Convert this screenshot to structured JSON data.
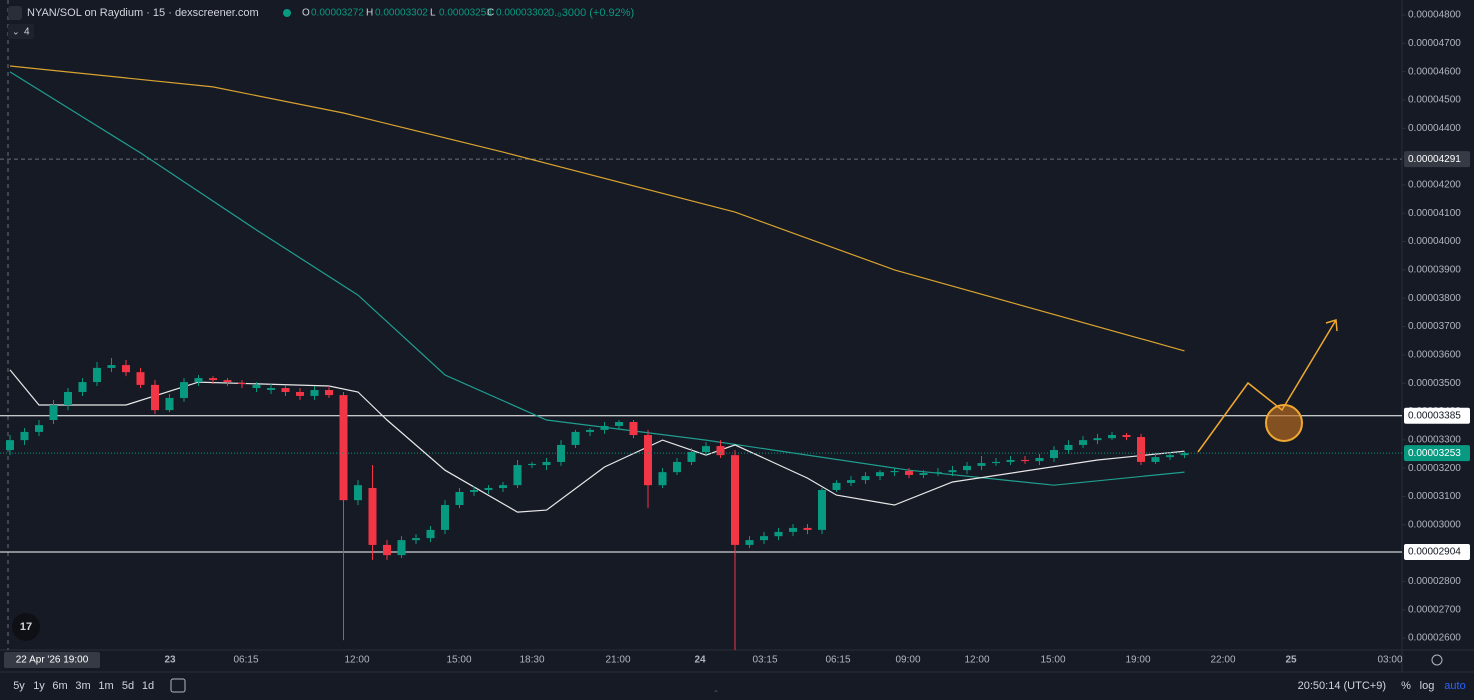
{
  "chart_data": {
    "type": "candlestick",
    "title": "NYAN/SOL on Raydium · 15 · dexscreener.com",
    "indicator_count": "4",
    "legend_ohlc": [
      {
        "label": "O",
        "value": "0.00003272"
      },
      {
        "label": "H",
        "value": "0.00003302"
      },
      {
        "label": "L",
        "value": "0.00003253"
      },
      {
        "label": "C",
        "value": "0.00003302"
      }
    ],
    "change": "0.₀3000 (+0.92%)",
    "up_color": "#089981",
    "down_color": "#f23645",
    "ylim": [
      2.558e-05,
      4.853e-05
    ],
    "yticks": [
      {
        "value": 4.8e-05,
        "label": "0.00004800"
      },
      {
        "value": 4.7e-05,
        "label": "0.00004700"
      },
      {
        "value": 4.6e-05,
        "label": "0.00004600"
      },
      {
        "value": 4.5e-05,
        "label": "0.00004500"
      },
      {
        "value": 4.4e-05,
        "label": "0.00004400"
      },
      {
        "value": 4.3e-05,
        "label": "0.00004300"
      },
      {
        "value": 4.2e-05,
        "label": "0.00004200"
      },
      {
        "value": 4.1e-05,
        "label": "0.00004100"
      },
      {
        "value": 4e-05,
        "label": "0.00004000"
      },
      {
        "value": 3.9e-05,
        "label": "0.00003900"
      },
      {
        "value": 3.8e-05,
        "label": "0.00003800"
      },
      {
        "value": 3.7e-05,
        "label": "0.00003700"
      },
      {
        "value": 3.6e-05,
        "label": "0.00003600"
      },
      {
        "value": 3.5e-05,
        "label": "0.00003500"
      },
      {
        "value": 3.4e-05,
        "label": "0.00003400"
      },
      {
        "value": 3.3e-05,
        "label": "0.00003300"
      },
      {
        "value": 3.2e-05,
        "label": "0.00003200"
      },
      {
        "value": 3.1e-05,
        "label": "0.00003100"
      },
      {
        "value": 3e-05,
        "label": "0.00003000"
      },
      {
        "value": 2.9e-05,
        "label": "0.00002900"
      },
      {
        "value": 2.8e-05,
        "label": "0.00002800"
      },
      {
        "value": 2.7e-05,
        "label": "0.00002700"
      },
      {
        "value": 2.6e-05,
        "label": "0.00002600"
      }
    ],
    "price_lines": [
      {
        "value": 4.291e-05,
        "label": "0.00004291",
        "style": "dashed",
        "color": "#6a6d78"
      },
      {
        "value": 3.385e-05,
        "label": "0.00003385",
        "style": "solid",
        "color": "#ffffff"
      },
      {
        "value": 2.904e-05,
        "label": "0.00002904",
        "style": "solid",
        "color": "#ffffff"
      }
    ],
    "last_price": {
      "value": 3.253e-05,
      "label": "0.00003253"
    },
    "time_labels": [
      "22 Apr '26  19:00",
      "23",
      "06:15",
      "12:00",
      "15:00",
      "18:30",
      "21:00",
      "24",
      "03:15",
      "06:15",
      "09:00",
      "12:00",
      "15:00",
      "19:00",
      "22:00",
      "25",
      "03:00"
    ],
    "candles": [
      {
        "o": 3.264e-05,
        "h": 3.317e-05,
        "l": 3.246e-05,
        "c": 3.299e-05
      },
      {
        "o": 3.299e-05,
        "h": 3.342e-05,
        "l": 3.282e-05,
        "c": 3.328e-05
      },
      {
        "o": 3.328e-05,
        "h": 3.37e-05,
        "l": 3.313e-05,
        "c": 3.352e-05
      },
      {
        "o": 3.37e-05,
        "h": 3.441e-05,
        "l": 3.356e-05,
        "c": 3.423e-05
      },
      {
        "o": 3.423e-05,
        "h": 3.483e-05,
        "l": 3.405e-05,
        "c": 3.469e-05
      },
      {
        "o": 3.469e-05,
        "h": 3.518e-05,
        "l": 3.455e-05,
        "c": 3.504e-05
      },
      {
        "o": 3.504e-05,
        "h": 3.575e-05,
        "l": 3.49e-05,
        "c": 3.554e-05
      },
      {
        "o": 3.554e-05,
        "h": 3.589e-05,
        "l": 3.539e-05,
        "c": 3.564e-05
      },
      {
        "o": 3.564e-05,
        "h": 3.582e-05,
        "l": 3.525e-05,
        "c": 3.539e-05
      },
      {
        "o": 3.539e-05,
        "h": 3.554e-05,
        "l": 3.483e-05,
        "c": 3.494e-05
      },
      {
        "o": 3.494e-05,
        "h": 3.511e-05,
        "l": 3.391e-05,
        "c": 3.405e-05
      },
      {
        "o": 3.405e-05,
        "h": 3.462e-05,
        "l": 3.398e-05,
        "c": 3.448e-05
      },
      {
        "o": 3.448e-05,
        "h": 3.518e-05,
        "l": 3.434e-05,
        "c": 3.504e-05
      },
      {
        "o": 3.504e-05,
        "h": 3.529e-05,
        "l": 3.49e-05,
        "c": 3.518e-05
      },
      {
        "o": 3.518e-05,
        "h": 3.525e-05,
        "l": 3.497e-05,
        "c": 3.511e-05
      },
      {
        "o": 3.511e-05,
        "h": 3.518e-05,
        "l": 3.49e-05,
        "c": 3.504e-05
      },
      {
        "o": 3.501e-05,
        "h": 3.511e-05,
        "l": 3.483e-05,
        "c": 3.497e-05
      },
      {
        "o": 3.483e-05,
        "h": 3.504e-05,
        "l": 3.469e-05,
        "c": 3.494e-05
      },
      {
        "o": 3.476e-05,
        "h": 3.497e-05,
        "l": 3.462e-05,
        "c": 3.483e-05
      },
      {
        "o": 3.483e-05,
        "h": 3.494e-05,
        "l": 3.455e-05,
        "c": 3.469e-05
      },
      {
        "o": 3.469e-05,
        "h": 3.483e-05,
        "l": 3.441e-05,
        "c": 3.455e-05
      },
      {
        "o": 3.455e-05,
        "h": 3.49e-05,
        "l": 3.441e-05,
        "c": 3.476e-05
      },
      {
        "o": 3.476e-05,
        "h": 3.49e-05,
        "l": 3.448e-05,
        "c": 3.458e-05
      },
      {
        "o": 3.458e-05,
        "h": 3.469e-05,
        "l": 2.593e-05,
        "c": 3.087e-05
      },
      {
        "o": 3.087e-05,
        "h": 3.158e-05,
        "l": 3.07e-05,
        "c": 3.14e-05
      },
      {
        "o": 3.13e-05,
        "h": 3.211e-05,
        "l": 2.876e-05,
        "c": 2.929e-05
      },
      {
        "o": 2.929e-05,
        "h": 2.946e-05,
        "l": 2.876e-05,
        "c": 2.893e-05
      },
      {
        "o": 2.893e-05,
        "h": 2.96e-05,
        "l": 2.883e-05,
        "c": 2.946e-05
      },
      {
        "o": 2.946e-05,
        "h": 2.967e-05,
        "l": 2.932e-05,
        "c": 2.953e-05
      },
      {
        "o": 2.953e-05,
        "h": 2.996e-05,
        "l": 2.939e-05,
        "c": 2.982e-05
      },
      {
        "o": 2.982e-05,
        "h": 3.087e-05,
        "l": 2.967e-05,
        "c": 3.07e-05
      },
      {
        "o": 3.07e-05,
        "h": 3.13e-05,
        "l": 3.059e-05,
        "c": 3.116e-05
      },
      {
        "o": 3.116e-05,
        "h": 3.137e-05,
        "l": 3.102e-05,
        "c": 3.123e-05
      },
      {
        "o": 3.123e-05,
        "h": 3.14e-05,
        "l": 3.109e-05,
        "c": 3.13e-05
      },
      {
        "o": 3.13e-05,
        "h": 3.151e-05,
        "l": 3.116e-05,
        "c": 3.14e-05
      },
      {
        "o": 3.14e-05,
        "h": 3.229e-05,
        "l": 3.13e-05,
        "c": 3.211e-05
      },
      {
        "o": 3.211e-05,
        "h": 3.222e-05,
        "l": 3.2e-05,
        "c": 3.215e-05
      },
      {
        "o": 3.211e-05,
        "h": 3.236e-05,
        "l": 3.193e-05,
        "c": 3.222e-05
      },
      {
        "o": 3.222e-05,
        "h": 3.299e-05,
        "l": 3.208e-05,
        "c": 3.282e-05
      },
      {
        "o": 3.282e-05,
        "h": 3.335e-05,
        "l": 3.271e-05,
        "c": 3.328e-05
      },
      {
        "o": 3.328e-05,
        "h": 3.342e-05,
        "l": 3.313e-05,
        "c": 3.335e-05
      },
      {
        "o": 3.335e-05,
        "h": 3.363e-05,
        "l": 3.321e-05,
        "c": 3.349e-05
      },
      {
        "o": 3.349e-05,
        "h": 3.37e-05,
        "l": 3.335e-05,
        "c": 3.363e-05
      },
      {
        "o": 3.363e-05,
        "h": 3.37e-05,
        "l": 3.306e-05,
        "c": 3.317e-05
      },
      {
        "o": 3.317e-05,
        "h": 3.335e-05,
        "l": 3.059e-05,
        "c": 3.14e-05
      },
      {
        "o": 3.14e-05,
        "h": 3.2e-05,
        "l": 3.13e-05,
        "c": 3.186e-05
      },
      {
        "o": 3.186e-05,
        "h": 3.236e-05,
        "l": 3.176e-05,
        "c": 3.222e-05
      },
      {
        "o": 3.222e-05,
        "h": 3.271e-05,
        "l": 3.211e-05,
        "c": 3.257e-05
      },
      {
        "o": 3.257e-05,
        "h": 3.292e-05,
        "l": 3.246e-05,
        "c": 3.278e-05
      },
      {
        "o": 3.278e-05,
        "h": 3.299e-05,
        "l": 3.236e-05,
        "c": 3.246e-05
      },
      {
        "o": 3.246e-05,
        "h": 3.264e-05,
        "l": 2.558e-05,
        "c": 2.929e-05
      },
      {
        "o": 2.929e-05,
        "h": 2.96e-05,
        "l": 2.918e-05,
        "c": 2.946e-05
      },
      {
        "o": 2.946e-05,
        "h": 2.975e-05,
        "l": 2.932e-05,
        "c": 2.96e-05
      },
      {
        "o": 2.96e-05,
        "h": 2.989e-05,
        "l": 2.946e-05,
        "c": 2.975e-05
      },
      {
        "o": 2.975e-05,
        "h": 3.003e-05,
        "l": 2.96e-05,
        "c": 2.989e-05
      },
      {
        "o": 2.989e-05,
        "h": 3.003e-05,
        "l": 2.967e-05,
        "c": 2.982e-05
      },
      {
        "o": 2.982e-05,
        "h": 3.13e-05,
        "l": 2.967e-05,
        "c": 3.123e-05
      },
      {
        "o": 3.123e-05,
        "h": 3.158e-05,
        "l": 3.116e-05,
        "c": 3.148e-05
      },
      {
        "o": 3.148e-05,
        "h": 3.172e-05,
        "l": 3.137e-05,
        "c": 3.158e-05
      },
      {
        "o": 3.158e-05,
        "h": 3.186e-05,
        "l": 3.144e-05,
        "c": 3.172e-05
      },
      {
        "o": 3.172e-05,
        "h": 3.193e-05,
        "l": 3.158e-05,
        "c": 3.186e-05
      },
      {
        "o": 3.186e-05,
        "h": 3.2e-05,
        "l": 3.172e-05,
        "c": 3.19e-05
      },
      {
        "o": 3.19e-05,
        "h": 3.2e-05,
        "l": 3.165e-05,
        "c": 3.176e-05
      },
      {
        "o": 3.176e-05,
        "h": 3.193e-05,
        "l": 3.165e-05,
        "c": 3.183e-05
      },
      {
        "o": 3.183e-05,
        "h": 3.2e-05,
        "l": 3.172e-05,
        "c": 3.186e-05
      },
      {
        "o": 3.186e-05,
        "h": 3.208e-05,
        "l": 3.172e-05,
        "c": 3.193e-05
      },
      {
        "o": 3.193e-05,
        "h": 3.222e-05,
        "l": 3.179e-05,
        "c": 3.208e-05
      },
      {
        "o": 3.208e-05,
        "h": 3.243e-05,
        "l": 3.193e-05,
        "c": 3.218e-05
      },
      {
        "o": 3.218e-05,
        "h": 3.236e-05,
        "l": 3.208e-05,
        "c": 3.222e-05
      },
      {
        "o": 3.222e-05,
        "h": 3.243e-05,
        "l": 3.211e-05,
        "c": 3.229e-05
      },
      {
        "o": 3.229e-05,
        "h": 3.243e-05,
        "l": 3.215e-05,
        "c": 3.225e-05
      },
      {
        "o": 3.225e-05,
        "h": 3.25e-05,
        "l": 3.211e-05,
        "c": 3.236e-05
      },
      {
        "o": 3.236e-05,
        "h": 3.278e-05,
        "l": 3.222e-05,
        "c": 3.264e-05
      },
      {
        "o": 3.264e-05,
        "h": 3.299e-05,
        "l": 3.25e-05,
        "c": 3.282e-05
      },
      {
        "o": 3.282e-05,
        "h": 3.313e-05,
        "l": 3.271e-05,
        "c": 3.299e-05
      },
      {
        "o": 3.299e-05,
        "h": 3.321e-05,
        "l": 3.285e-05,
        "c": 3.306e-05
      },
      {
        "o": 3.306e-05,
        "h": 3.328e-05,
        "l": 3.299e-05,
        "c": 3.317e-05
      },
      {
        "o": 3.317e-05,
        "h": 3.324e-05,
        "l": 3.299e-05,
        "c": 3.31e-05
      },
      {
        "o": 3.31e-05,
        "h": 3.321e-05,
        "l": 3.211e-05,
        "c": 3.222e-05
      },
      {
        "o": 3.222e-05,
        "h": 3.25e-05,
        "l": 3.215e-05,
        "c": 3.239e-05
      },
      {
        "o": 3.239e-05,
        "h": 3.257e-05,
        "l": 3.229e-05,
        "c": 3.246e-05
      },
      {
        "o": 3.246e-05,
        "h": 3.257e-05,
        "l": 3.236e-05,
        "c": 3.253e-05
      }
    ],
    "lines": [
      {
        "color": "#d9a330",
        "x": [
          0,
          14,
          23,
          34,
          50,
          61,
          81
        ],
        "values": [
          4.62e-05,
          4.546e-05,
          4.454e-05,
          4.316e-05,
          4.104e-05,
          3.9e-05,
          3.614e-05
        ]
      },
      {
        "color": "#1f9e8f",
        "x": [
          0,
          9,
          17,
          24,
          30,
          37,
          48,
          62,
          72,
          81
        ],
        "values": [
          4.599e-05,
          4.313e-05,
          4.041e-05,
          3.811e-05,
          3.529e-05,
          3.37e-05,
          3.299e-05,
          3.193e-05,
          3.14e-05,
          3.186e-05
        ]
      },
      {
        "color": "#e8e8e8",
        "x": [
          0,
          2,
          8,
          13,
          22,
          24,
          26,
          30,
          35,
          37,
          41,
          45,
          48,
          50,
          55,
          57,
          61,
          65,
          75,
          81
        ],
        "values": [
          3.547e-05,
          3.423e-05,
          3.423e-05,
          3.504e-05,
          3.49e-05,
          3.469e-05,
          3.37e-05,
          3.193e-05,
          3.045e-05,
          3.052e-05,
          3.204e-05,
          3.299e-05,
          3.246e-05,
          3.282e-05,
          3.165e-05,
          3.105e-05,
          3.07e-05,
          3.151e-05,
          3.229e-05,
          3.26e-05
        ]
      }
    ],
    "ranges": [
      "5y",
      "1y",
      "6m",
      "3m",
      "1m",
      "5d",
      "1d"
    ],
    "clock": "20:50:14 (UTC+9)",
    "scale_buttons": [
      "%",
      "log",
      "auto"
    ]
  }
}
